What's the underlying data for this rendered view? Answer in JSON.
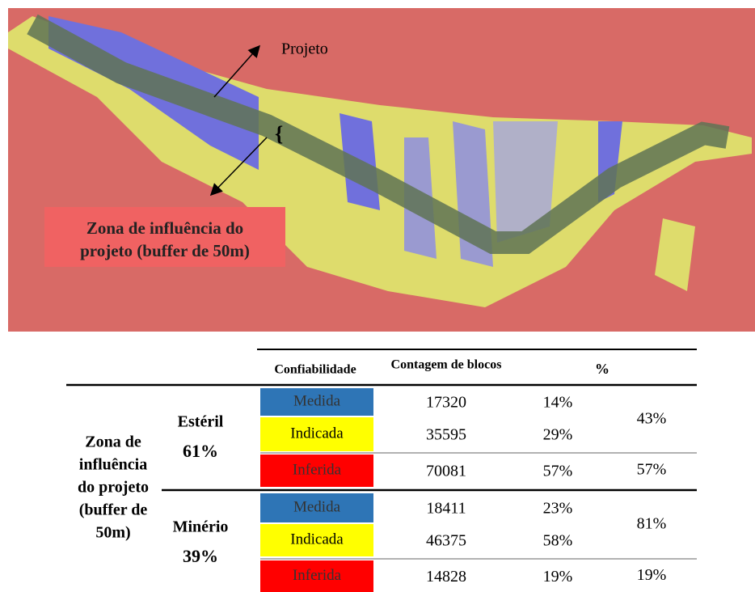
{
  "figure": {
    "annotations": {
      "project": "Projeto",
      "zone": [
        "Zona de influência do",
        "projeto (buffer de 50m)"
      ]
    }
  },
  "table": {
    "header": [
      "Confiabilidade",
      "Contagem de blocos",
      "%"
    ],
    "row_label": [
      "Zona de",
      "influência",
      "do projeto",
      "(buffer de",
      "50m)"
    ],
    "groups": [
      {
        "name": "Estéril",
        "share": "61%",
        "rows": [
          {
            "class": "Medida",
            "count": "17320",
            "pct": "14%"
          },
          {
            "class": "Indicada",
            "count": "35595",
            "pct": "29%"
          },
          {
            "class": "Inferida",
            "count": "70081",
            "pct": "57%"
          }
        ],
        "subtotals": [
          "43%",
          "57%"
        ]
      },
      {
        "name": "Minério",
        "share": "39%",
        "rows": [
          {
            "class": "Medida",
            "count": "18411",
            "pct": "23%"
          },
          {
            "class": "Indicada",
            "count": "46375",
            "pct": "58%"
          },
          {
            "class": "Inferida",
            "count": "14828",
            "pct": "19%"
          }
        ],
        "subtotals": [
          "81%",
          "19%"
        ]
      }
    ]
  }
}
